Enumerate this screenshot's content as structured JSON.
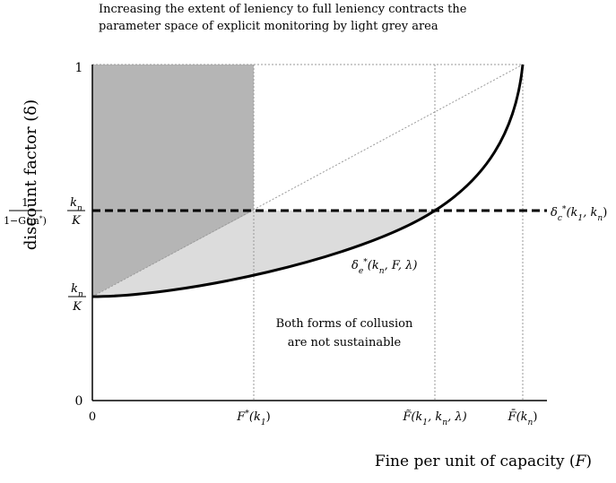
{
  "title": [
    "Increasing the extent of leniency to full leniency contracts the",
    "parameter space of explicit monitoring by light grey area"
  ],
  "y_axis": {
    "label": "discount factor (δ)",
    "ticks": [
      "1",
      "0"
    ],
    "fraction_label": {
      "left_numerator": "1",
      "left_denominator": [
        {
          "text": "1−G(m"
        },
        {
          "text": "*",
          "style": "sup"
        },
        {
          "text": ")"
        }
      ],
      "right_numerator": [
        {
          "text": "k",
          "style": "italic"
        },
        {
          "text": "n",
          "style": "sub"
        }
      ],
      "right_denominator": [
        {
          "text": "K",
          "style": "italic"
        }
      ]
    },
    "lower_label": {
      "numerator": [
        {
          "text": "k",
          "style": "italic"
        },
        {
          "text": "n",
          "style": "sub"
        }
      ],
      "denominator": [
        {
          "text": "K",
          "style": "italic"
        }
      ]
    }
  },
  "x_axis": {
    "label": [
      {
        "text": "Fine per unit of capacity ("
      },
      {
        "text": "F",
        "style": "italic"
      },
      {
        "text": ")"
      }
    ],
    "ticks": [
      [
        {
          "text": "0"
        }
      ],
      [
        {
          "text": "F",
          "style": "italic"
        },
        {
          "text": "*",
          "style": "sup"
        },
        {
          "text": "(k",
          "style": "italic"
        },
        {
          "text": "1",
          "style": "sub"
        },
        {
          "text": ")"
        }
      ],
      [
        {
          "text": "F̃",
          "style": "italic"
        },
        {
          "text": "(k",
          "style": "italic"
        },
        {
          "text": "1",
          "style": "sub"
        },
        {
          "text": ", k",
          "style": "italic"
        },
        {
          "text": "n",
          "style": "sub"
        },
        {
          "text": ", λ)",
          "style": "italic"
        }
      ],
      [
        {
          "text": "F̄",
          "style": "italic"
        },
        {
          "text": "(k",
          "style": "italic"
        },
        {
          "text": "n",
          "style": "sub"
        },
        {
          "text": ")"
        }
      ]
    ]
  },
  "curves": {
    "collusion_line": [
      {
        "text": "δ",
        "style": "italic"
      },
      {
        "text": "c",
        "style": "sub"
      },
      {
        "text": "*",
        "style": "sup"
      },
      {
        "text": "(k",
        "style": "italic"
      },
      {
        "text": "1",
        "style": "sub"
      },
      {
        "text": ", k",
        "style": "italic"
      },
      {
        "text": "n",
        "style": "sub"
      },
      {
        "text": ")"
      }
    ],
    "explicit_curve": [
      {
        "text": "δ",
        "style": "italic"
      },
      {
        "text": "e",
        "style": "sub"
      },
      {
        "text": "*",
        "style": "sup"
      },
      {
        "text": "(k",
        "style": "italic"
      },
      {
        "text": "n",
        "style": "sub"
      },
      {
        "text": ", F, λ)",
        "style": "italic"
      }
    ]
  },
  "region_note": [
    "Both forms of collusion",
    "are not sustainable"
  ]
}
